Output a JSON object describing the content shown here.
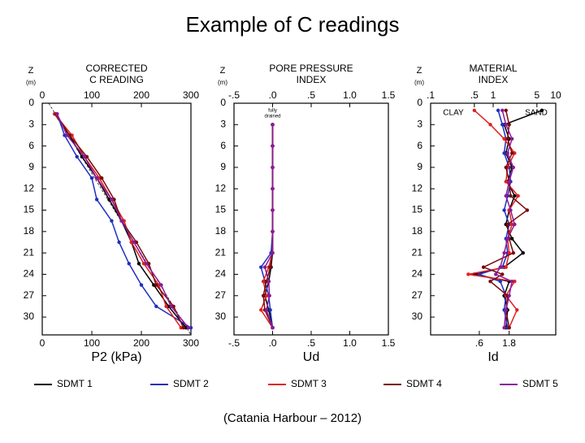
{
  "title": "Example of C readings",
  "caption": "(Catania Harbour – 2012)",
  "chart_data": [
    {
      "type": "profile",
      "title": [
        "CORRECTED",
        "C READING"
      ],
      "ylabel": [
        "Z",
        "(m)"
      ],
      "xlabel": "P2 (kPa)",
      "xlim": [
        0,
        300
      ],
      "xticks": [
        0,
        100,
        200,
        300
      ],
      "ylim": [
        0,
        32.5
      ],
      "yticks": [
        0,
        3,
        6,
        9,
        12,
        15,
        18,
        21,
        24,
        27,
        30
      ],
      "y": [
        1.5,
        4.5,
        7.5,
        10.5,
        13.5,
        16.5,
        19.5,
        22.5,
        25.5,
        28.5,
        31.5
      ],
      "series": [
        {
          "name": "SDMT 1",
          "color": "#000000",
          "values": [
            25,
            55,
            80,
            110,
            135,
            160,
            180,
            195,
            225,
            255,
            290
          ]
        },
        {
          "name": "SDMT 2",
          "color": "#1f2fbf",
          "values": [
            30,
            45,
            70,
            100,
            110,
            140,
            155,
            175,
            200,
            230,
            300
          ]
        },
        {
          "name": "SDMT 3",
          "color": "#e02020",
          "values": [
            25,
            60,
            85,
            115,
            140,
            165,
            180,
            205,
            235,
            250,
            280
          ]
        },
        {
          "name": "SDMT 4",
          "color": "#7a0a0a",
          "values": [
            28,
            55,
            90,
            120,
            145,
            160,
            190,
            215,
            230,
            265,
            285
          ]
        },
        {
          "name": "SDMT 5",
          "color": "#8b1a9a",
          "values": [
            30,
            50,
            85,
            110,
            140,
            160,
            185,
            210,
            240,
            260,
            295
          ]
        }
      ]
    },
    {
      "type": "profile",
      "title": [
        "PORE PRESSURE",
        "INDEX"
      ],
      "ylabel": [
        "Z",
        "(m)"
      ],
      "xlabel": "Ud",
      "xlim": [
        -0.5,
        1.5
      ],
      "xticks": [
        {
          "value": -0.5,
          "label": "-.5"
        },
        {
          "value": 0,
          "label": ".0"
        },
        {
          "value": 0.5,
          "label": ".5"
        },
        {
          "value": 1,
          "label": "1.0"
        },
        {
          "value": 1.5,
          "label": "1.5"
        }
      ],
      "ylim": [
        0,
        32.5
      ],
      "yticks": [
        0,
        3,
        6,
        9,
        12,
        15,
        18,
        21,
        24,
        27,
        30
      ],
      "annotations": [
        [
          "fully",
          "drained"
        ]
      ],
      "y": [
        3,
        6,
        9,
        12,
        15,
        18,
        21,
        23,
        25,
        27,
        29,
        31.5
      ],
      "series": [
        {
          "color": "#000000",
          "values": [
            0,
            0,
            0,
            0,
            0,
            0,
            0,
            -0.02,
            -0.05,
            -0.1,
            -0.05,
            0
          ]
        },
        {
          "color": "#1f2fbf",
          "values": [
            0,
            0,
            0,
            0,
            0,
            0,
            -0.02,
            -0.15,
            -0.1,
            -0.05,
            -0.03,
            0
          ]
        },
        {
          "color": "#e02020",
          "values": [
            0,
            0,
            0,
            0,
            0,
            0,
            0,
            -0.05,
            -0.12,
            -0.08,
            -0.15,
            0
          ]
        },
        {
          "color": "#7a0a0a",
          "values": [
            0,
            0,
            0,
            0,
            0,
            0,
            0,
            -0.03,
            -0.08,
            -0.12,
            -0.1,
            0
          ]
        },
        {
          "color": "#8b1a9a",
          "values": [
            0,
            0,
            0,
            0,
            0,
            0,
            0,
            -0.1,
            -0.05,
            -0.04,
            -0.08,
            0
          ]
        }
      ]
    },
    {
      "type": "profile",
      "title": [
        "MATERIAL",
        "INDEX"
      ],
      "ylabel": [
        "Z",
        "(m)"
      ],
      "xlabel": "Id",
      "log": true,
      "xlim": [
        0.1,
        10
      ],
      "xticks": [
        {
          "value": 0.1,
          "label": ".1"
        },
        {
          "value": 0.5,
          "label": ".5"
        },
        1,
        5,
        10
      ],
      "xticks_bottom": [
        {
          "value": 0.6,
          "label": ".6"
        },
        1.8
      ],
      "ylim": [
        0,
        32.5
      ],
      "yticks": [
        0,
        3,
        6,
        9,
        12,
        15,
        18,
        21,
        24,
        27,
        30
      ],
      "annotations": [
        "CLAY",
        "SAND"
      ],
      "y": [
        1,
        3,
        5,
        7,
        9,
        11,
        13,
        15,
        17,
        19,
        21,
        23,
        24,
        25,
        27,
        29,
        31.5
      ],
      "series": [
        {
          "color": "#000000",
          "values": [
            6,
            1.5,
            1.8,
            1.6,
            2,
            1.7,
            2.2,
            1.8,
            1.6,
            2,
            3,
            1.5,
            0.5,
            1.8,
            1.5,
            1.7,
            1.6
          ]
        },
        {
          "color": "#1f2fbf",
          "values": [
            1.2,
            1.4,
            1.6,
            1.5,
            1.8,
            1.9,
            1.7,
            1.5,
            1.8,
            1.6,
            1.7,
            1.4,
            0.6,
            1.3,
            1.6,
            1.5,
            1.7
          ]
        },
        {
          "color": "#e02020",
          "values": [
            0.5,
            0.9,
            1.5,
            2.2,
            1.7,
            1.6,
            2.5,
            1.8,
            2,
            1.7,
            1.8,
            1.6,
            0.4,
            2.2,
            1.6,
            2.4,
            1.8
          ]
        },
        {
          "color": "#7a0a0a",
          "values": [
            1.6,
            1.8,
            1.7,
            2,
            1.6,
            1.8,
            1.9,
            3.5,
            1.7,
            1.8,
            2.1,
            0.7,
            1.4,
            0.9,
            1.7,
            1.6,
            1.8
          ]
        },
        {
          "color": "#8b1a9a",
          "values": [
            1.4,
            1.6,
            2,
            1.7,
            2.1,
            1.8,
            1.6,
            1.9,
            2.2,
            1.7,
            1.5,
            1.3,
            1.1,
            2,
            1.8,
            1.6,
            1.5
          ]
        }
      ]
    }
  ]
}
